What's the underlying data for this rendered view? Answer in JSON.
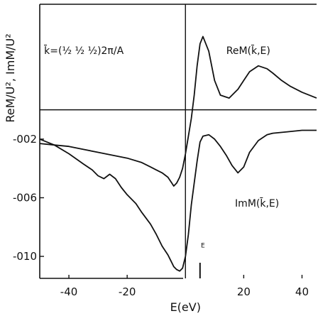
{
  "chart_data": {
    "type": "line",
    "xlabel": "E(eV)",
    "ylabel": "ReM/U², ImM/U²",
    "xlim": [
      -50,
      45
    ],
    "ylim": [
      -0.0115,
      0.0072
    ],
    "grid": false,
    "x_ticks": [
      {
        "value": -40,
        "label": "-40"
      },
      {
        "value": -20,
        "label": "-20"
      },
      {
        "value": 20,
        "label": "20"
      },
      {
        "value": 40,
        "label": "40"
      }
    ],
    "y_ticks": [
      {
        "value": -0.002,
        "label": "-002"
      },
      {
        "value": -0.006,
        "label": "-006"
      },
      {
        "value": -0.01,
        "label": "-010"
      }
    ],
    "annotations": [
      {
        "text": "k̄=(½ ½ ½)2π/A",
        "x": -48.5,
        "y": 0.0038
      },
      {
        "text": "ReM(k̄,E)",
        "x": 14,
        "y": 0.0038
      },
      {
        "text": "ImM(k̄,E)",
        "x": 17,
        "y": -0.0066
      },
      {
        "text": "E",
        "x": 5.3,
        "y": -0.0094
      }
    ],
    "fermi_level": {
      "x": 5,
      "label": "E"
    },
    "series": [
      {
        "x": [
          -50,
          -45,
          -40,
          -35,
          -30,
          -25,
          -20,
          -15,
          -12,
          -10,
          -8,
          -6,
          -5,
          -4,
          -3,
          -2,
          -1,
          0,
          1,
          2,
          3,
          4,
          5,
          6,
          8,
          10,
          12,
          15,
          18,
          20,
          22,
          25,
          28,
          30,
          33,
          36,
          40,
          45
        ],
        "y": [
          -0.0023,
          -0.0024,
          -0.0025,
          -0.0027,
          -0.0029,
          -0.0031,
          -0.0033,
          -0.0036,
          -0.0039,
          -0.0041,
          -0.0043,
          -0.0046,
          -0.0049,
          -0.0052,
          -0.005,
          -0.0046,
          -0.004,
          -0.003,
          -0.0018,
          -0.0006,
          0.001,
          0.003,
          0.0045,
          0.005,
          0.004,
          0.002,
          0.001,
          0.0008,
          0.0014,
          0.002,
          0.0026,
          0.003,
          0.0028,
          0.0025,
          0.002,
          0.0016,
          0.0012,
          0.0008
        ]
      },
      {
        "x": [
          -50,
          -45,
          -40,
          -35,
          -32,
          -30,
          -28,
          -26,
          -24,
          -22,
          -20,
          -17,
          -15,
          -12,
          -10,
          -8,
          -6,
          -5,
          -4,
          -3,
          -2,
          -1,
          0,
          1,
          2,
          3,
          4,
          5,
          6,
          8,
          10,
          12,
          14,
          16,
          18,
          20,
          22,
          25,
          28,
          30,
          35,
          40,
          45
        ],
        "y": [
          -0.002,
          -0.0024,
          -0.003,
          -0.0037,
          -0.0041,
          -0.0045,
          -0.0047,
          -0.0044,
          -0.0047,
          -0.0053,
          -0.0058,
          -0.0064,
          -0.007,
          -0.0078,
          -0.0085,
          -0.0093,
          -0.0099,
          -0.0103,
          -0.0107,
          -0.0109,
          -0.011,
          -0.0108,
          -0.01,
          -0.0085,
          -0.0065,
          -0.005,
          -0.0035,
          -0.0022,
          -0.0018,
          -0.0017,
          -0.002,
          -0.0025,
          -0.0031,
          -0.0038,
          -0.0043,
          -0.0039,
          -0.0029,
          -0.0021,
          -0.0017,
          -0.0016,
          -0.0015,
          -0.0014,
          -0.0014
        ]
      }
    ]
  }
}
